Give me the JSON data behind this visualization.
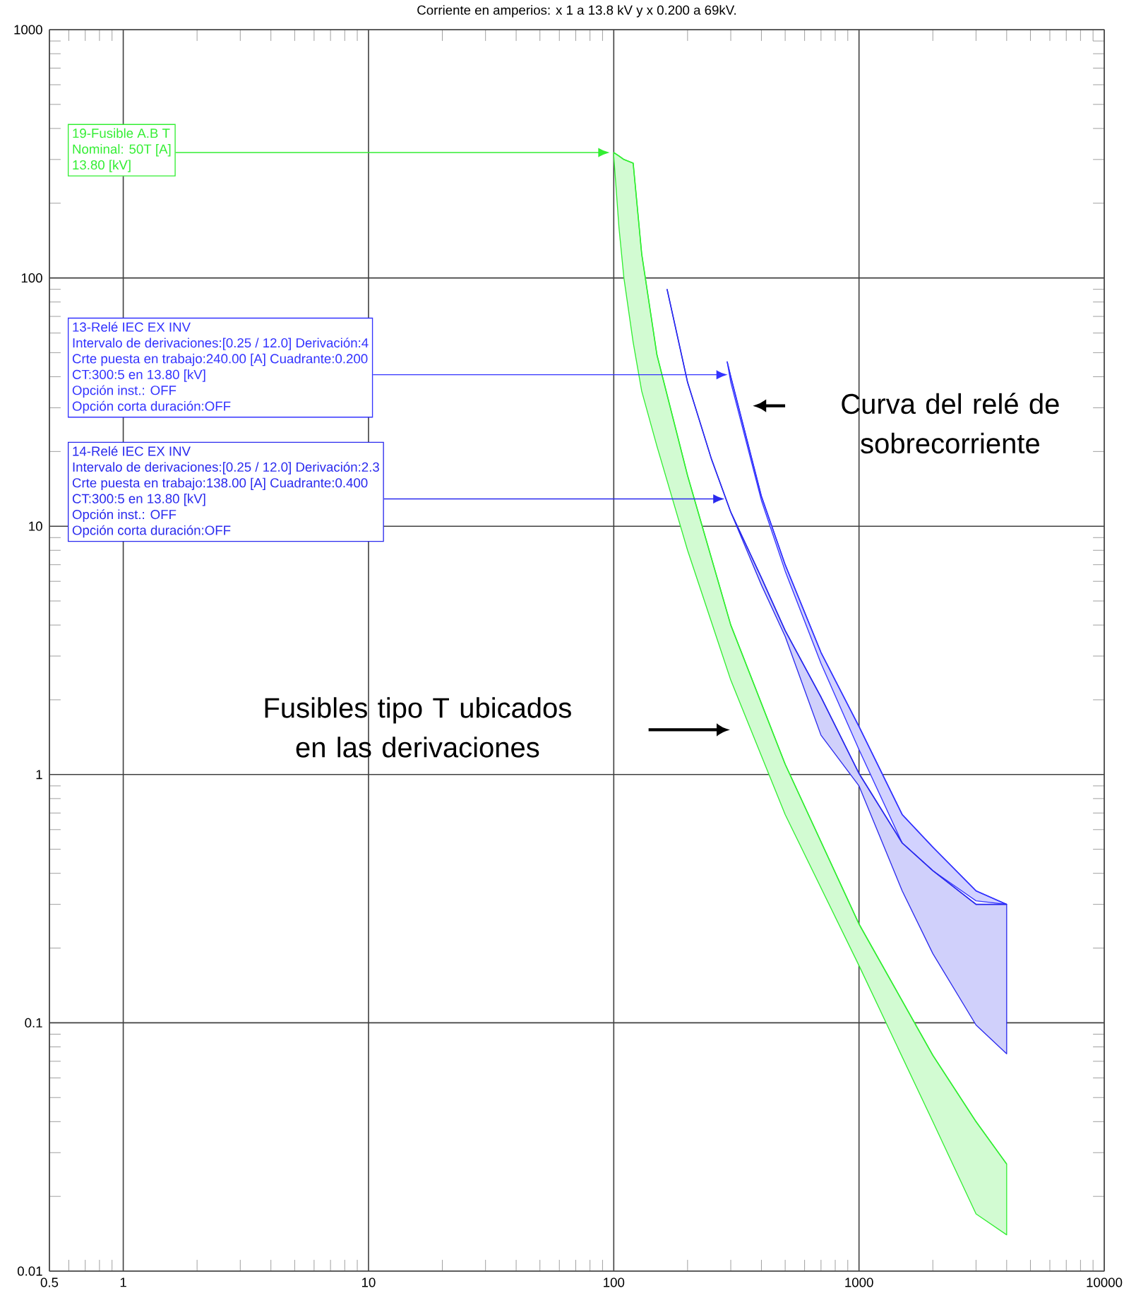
{
  "chart_data": {
    "type": "line",
    "title": "Corriente en amperios: x 1 a 13.8 kV y x 0.200 a 69kV.",
    "log": "xy",
    "grid": true,
    "xlim": [
      0.5,
      10000
    ],
    "ylim": [
      0.01,
      1000
    ],
    "xticks": [
      0.5,
      1,
      10,
      100,
      1000,
      10000
    ],
    "yticks": [
      0.01,
      0.1,
      1,
      10,
      100,
      1000
    ],
    "series": [
      {
        "color": "#33ee33",
        "x": [
          100,
          105,
          110,
          120,
          130,
          150,
          200,
          300,
          500,
          1000,
          2000,
          3000,
          4000
        ],
        "values": [
          320,
          310,
          300,
          290,
          125,
          49,
          16,
          4,
          1.1,
          0.25,
          0.074,
          0.04,
          0.027
        ],
        "lower": [
          310,
          160,
          100,
          55,
          35,
          21,
          8,
          2.4,
          0.69,
          0.17,
          0.04,
          0.017,
          0.014
        ],
        "upper": [
          320,
          310,
          300,
          290,
          125,
          49,
          16,
          4,
          1.1,
          0.25,
          0.074,
          0.04,
          0.027
        ]
      },
      {
        "color": "#3333ff",
        "x": [
          290,
          300,
          400,
          500,
          700,
          1000,
          1500,
          2000,
          3000,
          4000
        ],
        "values": [
          46,
          40,
          13.2,
          7,
          3.1,
          1.56,
          0.69,
          0.51,
          0.34,
          0.3
        ],
        "lower": [
          46,
          38,
          12.7,
          6.6,
          2.8,
          1.26,
          0.53,
          0.41,
          0.31,
          0.3
        ],
        "upper": [
          46,
          40,
          13.2,
          7,
          3.1,
          1.56,
          0.69,
          0.51,
          0.34,
          0.3
        ]
      },
      {
        "color": "#2a2aee",
        "x": [
          165,
          200,
          250,
          300,
          400,
          500,
          700,
          1000,
          1500,
          2000,
          3000,
          4000
        ],
        "values": [
          90,
          38,
          18.7,
          11.4,
          6.2,
          3.8,
          2.05,
          1.01,
          0.53,
          0.41,
          0.3,
          0.3
        ],
        "lower": [
          90,
          38,
          18.7,
          11.4,
          5.8,
          3.6,
          1.44,
          0.9,
          0.34,
          0.19,
          0.098,
          0.075
        ],
        "upper": [
          90,
          38,
          18.7,
          11.4,
          6.2,
          3.8,
          2.05,
          1.01,
          0.53,
          0.41,
          0.3,
          0.3
        ]
      }
    ],
    "annotations": [
      "19-Fusible A.B T",
      "Nominal: 50T [A]",
      "13.80 [kV]",
      "13-Relé IEC EX INV",
      "Intervalo de derivaciones:[0.25 / 12.0] Derivación:4",
      "Crte puesta en trabajo:240.00 [A] Cuadrante:0.200",
      "CT:300:5 en 13.80 [kV]",
      "Opción inst.: OFF",
      "Opción corta duración:OFF",
      "14-Relé IEC EX INV",
      "Intervalo de derivaciones:[0.25 / 12.0] Derivación:2.3",
      "Crte puesta en trabajo:138.00 [A] Cuadrante:0.400",
      "CT:300:5 en 13.80 [kV]",
      "Opción inst.: OFF",
      "Opción corta duración:OFF",
      "Curva del relé de sobrecorriente",
      "Fusibles tipo T ubicados en las derivaciones"
    ]
  }
}
